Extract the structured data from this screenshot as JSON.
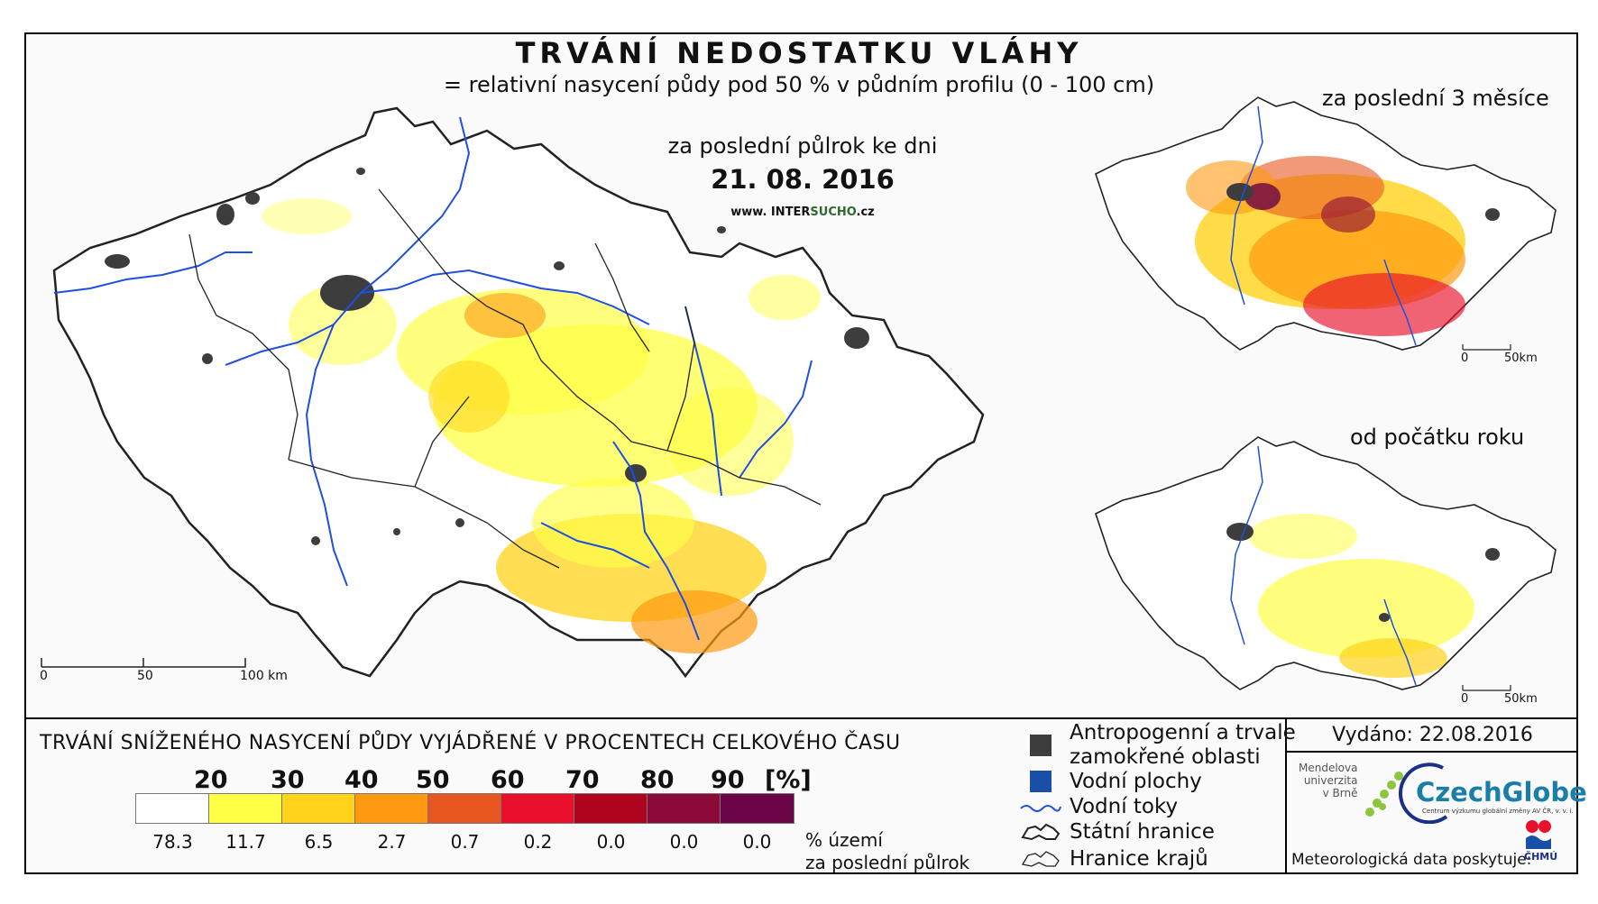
{
  "header": {
    "title": "TRVÁNÍ NEDOSTATKU VLÁHY",
    "subtitle": "= relativní nasycení půdy pod 50 % v půdním profilu (0 - 100 cm)",
    "period": "za poslední půlrok ke dni",
    "date": "21. 08. 2016",
    "web_prefix": "www. INTER",
    "web_highlight": "SUCHO",
    "web_suffix": ".cz"
  },
  "insets": {
    "three_months": "za poslední 3 měsíce",
    "year_start": "od počátku roku"
  },
  "scale_main": {
    "zero": "0",
    "mid": "50",
    "end": "100 km"
  },
  "scale_inset": {
    "zero": "0",
    "end": "50km"
  },
  "legend": {
    "title": "TRVÁNÍ SNÍŽENÉHO NASYCENÍ PŮDY VYJÁDŘENÉ V PROCENTECH CELKOVÉHO ČASU",
    "thresholds": [
      "20",
      "30",
      "40",
      "50",
      "60",
      "70",
      "80",
      "90",
      "[%]"
    ],
    "colors": [
      "#ffffff",
      "#ffff46",
      "#ffd31a",
      "#ff9a10",
      "#e8571f",
      "#e8102a",
      "#b0031e",
      "#8c0a38",
      "#6b0548"
    ],
    "percentages": [
      "78.3",
      "11.7",
      "6.5",
      "2.7",
      "0.7",
      "0.2",
      "0.0",
      "0.0",
      "0.0"
    ],
    "percent_caption_1": "% území",
    "percent_caption_2": "za poslední půlrok"
  },
  "map_legend": {
    "anthropogenic_1": "Antropogenní a trvale",
    "anthropogenic_2": "zamokřené oblasti",
    "water_bodies": "Vodní plochy",
    "rivers": "Vodní toky",
    "state_border": "Státní hranice",
    "region_border": "Hranice krajů",
    "anthropogenic_color": "#3d3d3d",
    "water_color": "#1a4fa8",
    "river_color": "#1f4fe0"
  },
  "credits": {
    "issued": "Vydáno: 22.08.2016",
    "mendel_1": "Mendelova",
    "mendel_2": "univerzita",
    "mendel_3": "v Brně",
    "czechglobe": "CzechGlobe",
    "czechglobe_sub": "Centrum výzkumu globální změny AV ČR, v. v. i.",
    "meteo": "Meteorologická data poskytuje:",
    "chmu": "ČHMÚ"
  }
}
